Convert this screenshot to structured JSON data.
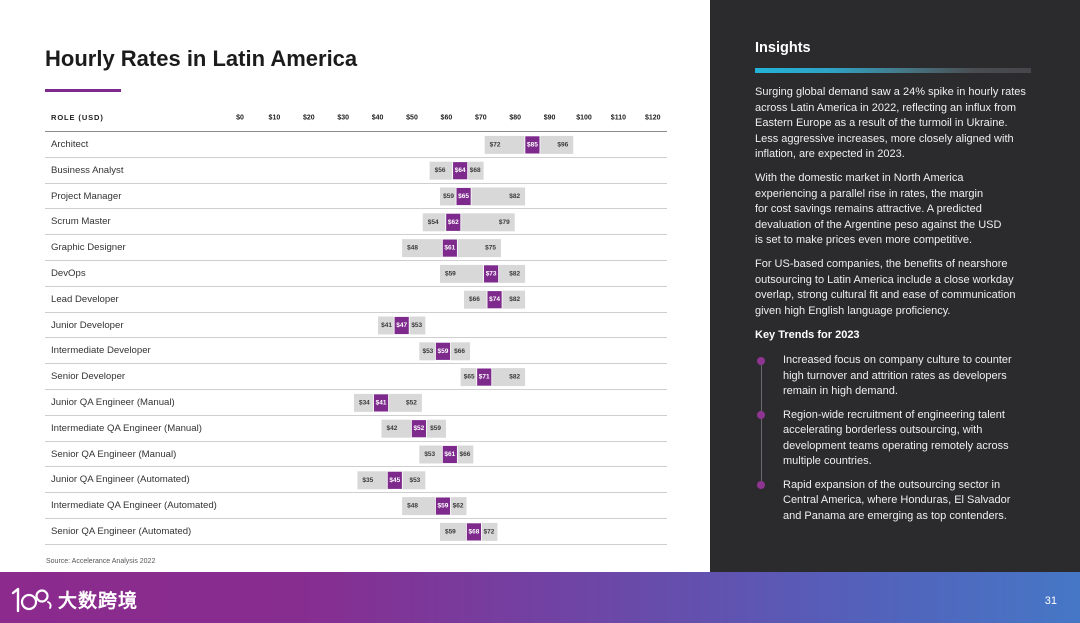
{
  "chart_data": {
    "type": "bar",
    "title": "Hourly Rates in Latin America",
    "category_header": "ROLE (USD)",
    "xlim": [
      0,
      120
    ],
    "xtick_values": [
      0,
      10,
      20,
      30,
      40,
      50,
      60,
      70,
      80,
      90,
      100,
      110,
      120
    ],
    "xtick_labels": [
      "$0",
      "$10",
      "$20",
      "$30",
      "$40",
      "$50",
      "$60",
      "$70",
      "$80",
      "$90",
      "$100",
      "$110",
      "$120"
    ],
    "categories": [
      "Architect",
      "Business Analyst",
      "Project Manager",
      "Scrum Master",
      "Graphic Designer",
      "DevOps",
      "Lead Developer",
      "Junior Developer",
      "Intermediate Developer",
      "Senior Developer",
      "Junior QA Engineer (Manual)",
      "Intermediate QA Engineer (Manual)",
      "Senior QA Engineer (Manual)",
      "Junior QA Engineer (Automated)",
      "Intermediate QA Engineer (Automated)",
      "Senior QA Engineer (Automated)"
    ],
    "low": [
      72,
      56,
      59,
      54,
      48,
      59,
      66,
      41,
      53,
      65,
      34,
      42,
      53,
      35,
      48,
      59
    ],
    "low_labels": [
      "$72",
      "$56",
      "$59",
      "$54",
      "$48",
      "$59",
      "$66",
      "$41",
      "$53",
      "$65",
      "$34",
      "$42",
      "$53",
      "$35",
      "$48",
      "$59"
    ],
    "mid": [
      85,
      64,
      65,
      62,
      61,
      73,
      74,
      47,
      59,
      71,
      41,
      52,
      61,
      45,
      59,
      68
    ],
    "mid_labels": [
      "$85",
      "$64",
      "$65",
      "$62",
      "$61",
      "$73",
      "$74",
      "$47",
      "$59",
      "$71",
      "$41",
      "$52",
      "$61",
      "$45",
      "$59",
      "$68"
    ],
    "high": [
      96,
      68,
      82,
      79,
      75,
      82,
      82,
      53,
      66,
      82,
      52,
      59,
      66,
      53,
      62,
      72
    ],
    "high_labels": [
      "$96",
      "$68",
      "$82",
      "$79",
      "$75",
      "$82",
      "$82",
      "$53",
      "$66",
      "$82",
      "$52",
      "$59",
      "$66",
      "$53",
      "$62",
      "$72"
    ],
    "source": "Source: Accelerance Analysis 2022"
  },
  "insights": {
    "heading": "Insights",
    "paragraphs": [
      "Surging global demand saw a 24% spike in hourly rates\nacross Latin America in 2022, reflecting an influx from\nEastern Europe as a result of the turmoil in Ukraine.\nLess aggressive increases, more closely aligned with\ninflation, are expected in 2023.",
      "With the domestic market in North America\nexperiencing a parallel rise in rates, the margin\nfor cost savings remains attractive. A predicted\ndevaluation of the Argentine peso against the USD\nis set to make prices even more competitive.",
      "For US-based companies, the benefits of nearshore\noutsourcing to Latin America include a close workday\noverlap, strong cultural fit and ease of communication\ngiven high English language proficiency."
    ],
    "key_trends_heading": "Key Trends for 2023",
    "trends": [
      "Increased focus on company culture to counter\nhigh turnover and attrition rates as developers\nremain in high demand.",
      "Region-wide recruitment of engineering talent\naccelerating borderless outsourcing, with\ndevelopment teams operating remotely across\nmultiple countries.",
      "Rapid expansion of the outsourcing sector in\nCentral America, where Honduras, El Salvador\nand Panama are emerging as top contenders."
    ]
  },
  "footer": {
    "logo_text": "大数跨境",
    "page_number": "31"
  },
  "colors": {
    "accent_purple": "#7d2a8c",
    "bar_gray": "#d8d8d8",
    "panel_bg": "#2b2b2d",
    "bullet_purple": "#8e3592",
    "insights_bar_cyan": "#22b4d8"
  }
}
